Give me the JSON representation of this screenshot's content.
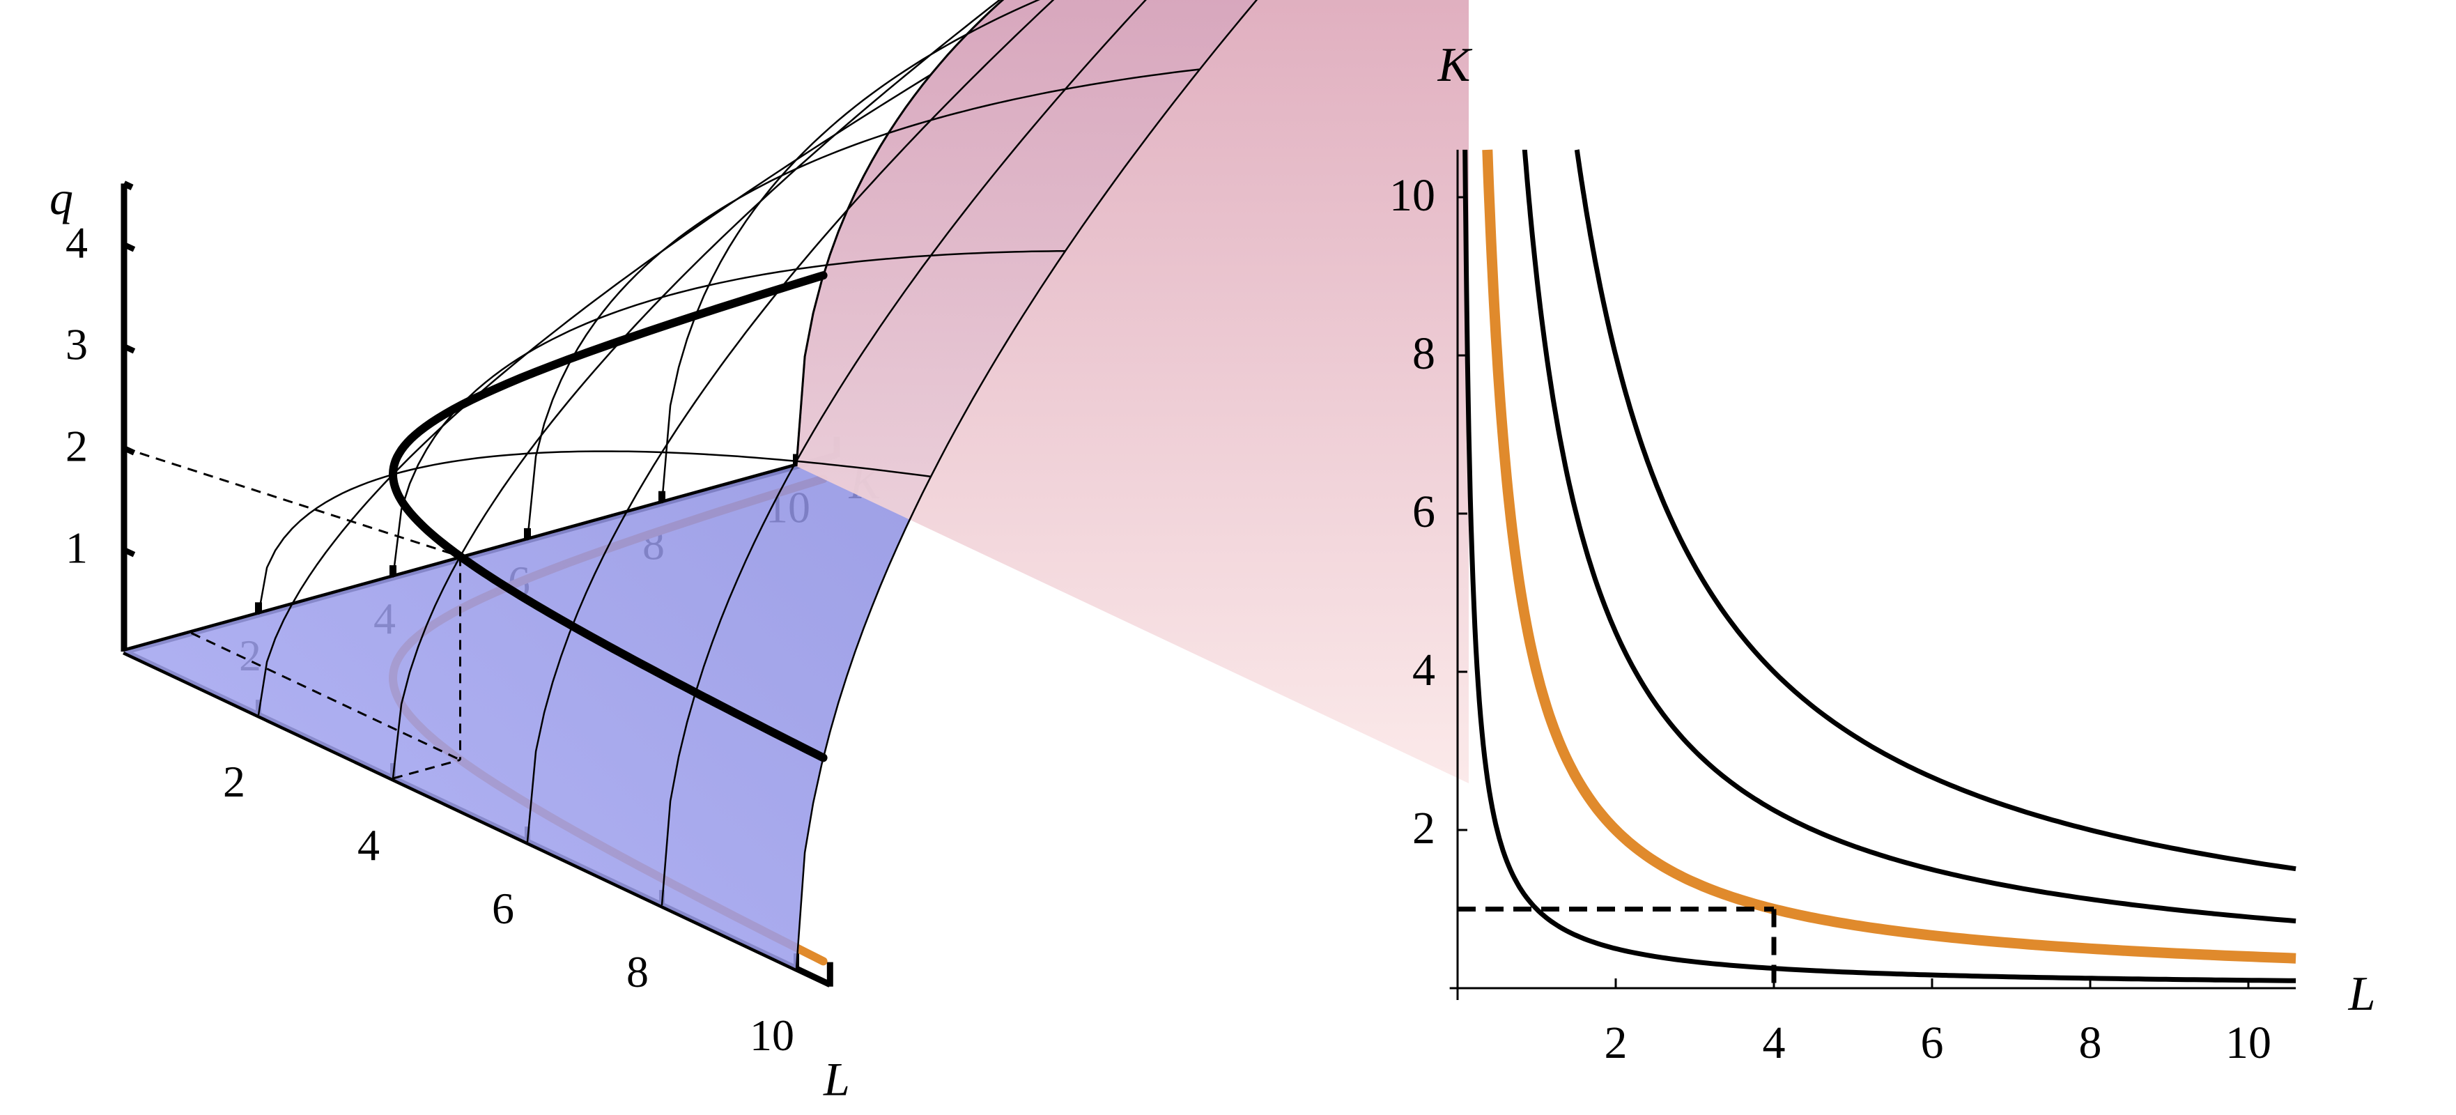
{
  "colors": {
    "surface_start": "#a8aaf4",
    "surface_mid": "#8c8ee0",
    "surface_end": "#7476d2",
    "cap_top": "#d596ad",
    "cap_bottom": "#fbe8e8",
    "highlight": "#e08a2c",
    "ink": "#000000"
  },
  "chart_data": [
    {
      "type": "surface3d",
      "function": "q = sqrt(L*K)",
      "axis_labels": {
        "q": "q",
        "L": "L",
        "K": "K"
      },
      "q_ticks": [
        "1",
        "2",
        "3",
        "4"
      ],
      "L_ticks": [
        "2",
        "4",
        "6",
        "8",
        "10"
      ],
      "K_ticks": [
        "2",
        "4",
        "6",
        "8",
        "10"
      ],
      "isoquant_levels": [
        1,
        2,
        3,
        4
      ],
      "highlighted_level": 2,
      "highlighted_point": {
        "L": 4,
        "K": 1,
        "q": 2
      },
      "ranges": {
        "L": [
          0,
          10
        ],
        "K": [
          0,
          10
        ],
        "q": [
          0,
          5
        ]
      }
    },
    {
      "type": "line",
      "xlabel": "L",
      "ylabel": "K",
      "xlim": [
        0,
        10.6
      ],
      "ylim": [
        0,
        10.6
      ],
      "x_ticks": [
        "2",
        "4",
        "6",
        "8",
        "10"
      ],
      "y_ticks": [
        "2",
        "4",
        "6",
        "8",
        "10"
      ],
      "series": [
        {
          "level": 1,
          "equation": "K = 1/L",
          "highlighted": false
        },
        {
          "level": 2,
          "equation": "K = 4/L",
          "highlighted": true
        },
        {
          "level": 3,
          "equation": "K = 9/L",
          "highlighted": false
        },
        {
          "level": 4,
          "equation": "K = 16/L",
          "highlighted": false
        }
      ],
      "marked_point": {
        "L": 4,
        "K": 1
      }
    }
  ]
}
